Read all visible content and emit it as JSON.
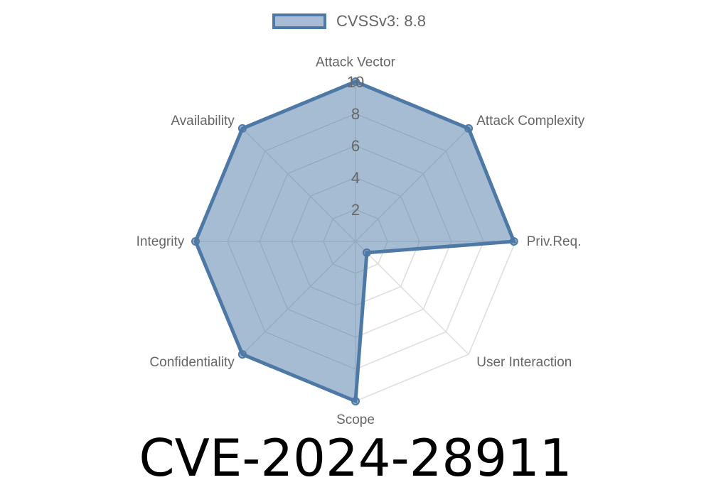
{
  "chart_data": {
    "type": "radar",
    "categories": [
      "Attack Vector",
      "Attack Complexity",
      "Priv.Req.",
      "User Interaction",
      "Scope",
      "Confidentiality",
      "Integrity",
      "Availability"
    ],
    "series": [
      {
        "name": "CVSSv3: 8.8",
        "values": [
          10,
          10,
          9.9,
          1,
          10,
          10,
          10,
          10
        ]
      }
    ],
    "rlim": [
      0,
      10
    ],
    "ticks": [
      "2",
      "4",
      "6",
      "8",
      "10"
    ],
    "tick_values": [
      2,
      4,
      6,
      8,
      10
    ],
    "legend": "top",
    "grid": true,
    "colors": {
      "stroke": "#4e79a7",
      "fill": "#a8bcd5",
      "grid": "#dddddd"
    }
  },
  "title": "CVE-2024-28911"
}
